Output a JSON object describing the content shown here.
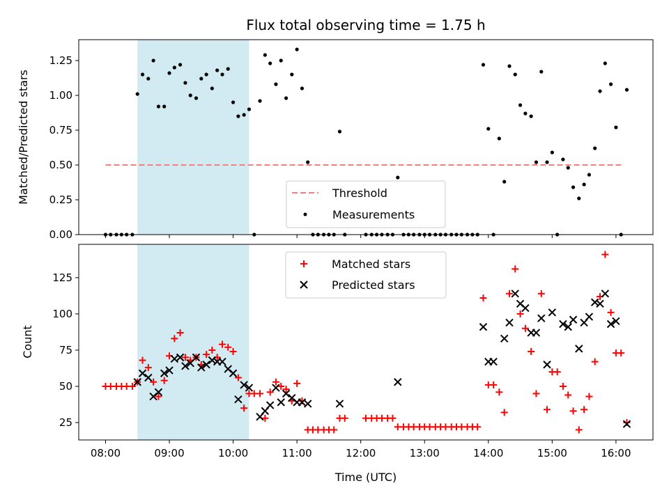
{
  "chart_data": [
    {
      "type": "scatter",
      "title": "Flux total observing time = 1.75 h",
      "xlabel": "",
      "ylabel": "Matched/Predicted stars",
      "xlim": [
        7.58,
        16.58
      ],
      "ylim": [
        0.0,
        1.4
      ],
      "y_ticks": [
        0.0,
        0.25,
        0.5,
        0.75,
        1.0,
        1.25
      ],
      "y_tick_labels": [
        "0.00",
        "0.25",
        "0.50",
        "0.75",
        "1.00",
        "1.25"
      ],
      "shaded_span": {
        "x0": 8.5,
        "x1": 10.25,
        "color": "#add8e6"
      },
      "legend": {
        "position": "lower-center",
        "entries": [
          "Threshold",
          "Measurements"
        ]
      },
      "threshold": {
        "name": "Threshold",
        "y": 0.5,
        "x0": 8.0,
        "x1": 16.08,
        "color": "#f08080"
      },
      "series": [
        {
          "name": "Measurements",
          "marker": "dot",
          "color": "#000000",
          "x": [
            8.0,
            8.08,
            8.17,
            8.25,
            8.33,
            8.42,
            8.5,
            8.58,
            8.67,
            8.75,
            8.83,
            8.92,
            9.0,
            9.08,
            9.17,
            9.25,
            9.33,
            9.42,
            9.5,
            9.58,
            9.67,
            9.75,
            9.83,
            9.92,
            10.0,
            10.08,
            10.17,
            10.25,
            10.33,
            10.42,
            10.5,
            10.58,
            10.67,
            10.75,
            10.83,
            10.92,
            11.0,
            11.08,
            11.17,
            11.25,
            11.33,
            11.42,
            11.5,
            11.58,
            11.67,
            11.75,
            12.08,
            12.17,
            12.25,
            12.33,
            12.42,
            12.5,
            12.58,
            12.67,
            12.75,
            12.83,
            12.92,
            13.0,
            13.08,
            13.17,
            13.25,
            13.33,
            13.42,
            13.5,
            13.58,
            13.67,
            13.75,
            13.83,
            13.92,
            14.0,
            14.08,
            14.17,
            14.25,
            14.33,
            14.42,
            14.5,
            14.58,
            14.67,
            14.75,
            14.83,
            14.92,
            15.0,
            15.08,
            15.17,
            15.25,
            15.33,
            15.42,
            15.5,
            15.58,
            15.67,
            15.75,
            15.83,
            15.92,
            16.0,
            16.08,
            16.17
          ],
          "y": [
            0,
            0,
            0,
            0,
            0,
            0,
            1.01,
            1.15,
            1.12,
            1.25,
            0.92,
            0.92,
            1.16,
            1.2,
            1.22,
            1.09,
            1.0,
            0.98,
            1.12,
            1.15,
            1.05,
            1.18,
            1.15,
            1.19,
            0.95,
            0.85,
            0.86,
            0.9,
            0.0,
            0.96,
            1.29,
            1.23,
            1.08,
            1.25,
            0.98,
            1.15,
            1.33,
            1.05,
            0.52,
            0,
            0,
            0,
            0,
            0,
            0.74,
            0,
            0,
            0,
            0,
            0,
            0,
            0,
            0.41,
            0,
            0,
            0,
            0,
            0,
            0,
            0,
            0,
            0,
            0,
            0,
            0,
            0,
            0,
            0,
            1.22,
            0.76,
            0,
            0.69,
            0.38,
            1.21,
            1.15,
            0.93,
            0.87,
            0.85,
            0.52,
            1.17,
            0.52,
            0.59,
            0,
            0.54,
            0.48,
            0.34,
            0.26,
            0.36,
            0.43,
            0.62,
            1.03,
            1.23,
            1.08,
            0.77,
            0,
            1.04
          ]
        }
      ]
    },
    {
      "type": "scatter",
      "title": "",
      "xlabel": "Time (UTC)",
      "ylabel": "Count",
      "xlim": [
        7.58,
        16.58
      ],
      "ylim": [
        13,
        148
      ],
      "y_ticks": [
        25,
        50,
        75,
        100,
        125
      ],
      "y_tick_labels": [
        "25",
        "50",
        "75",
        "100",
        "125"
      ],
      "x_ticks": [
        8,
        9,
        10,
        11,
        12,
        13,
        14,
        15,
        16
      ],
      "x_tick_labels": [
        "08:00",
        "09:00",
        "10:00",
        "11:00",
        "12:00",
        "13:00",
        "14:00",
        "15:00",
        "16:00"
      ],
      "shaded_span": {
        "x0": 8.5,
        "x1": 10.25,
        "color": "#add8e6"
      },
      "legend": {
        "position": "top-center",
        "entries": [
          "Matched stars",
          "Predicted stars"
        ]
      },
      "series": [
        {
          "name": "Matched stars",
          "marker": "plus",
          "color": "#ff0000",
          "x": [
            8.0,
            8.08,
            8.17,
            8.25,
            8.33,
            8.42,
            8.5,
            8.58,
            8.67,
            8.75,
            8.83,
            8.92,
            9.0,
            9.08,
            9.17,
            9.25,
            9.33,
            9.42,
            9.5,
            9.58,
            9.67,
            9.75,
            9.83,
            9.92,
            10.0,
            10.08,
            10.17,
            10.25,
            10.33,
            10.42,
            10.5,
            10.58,
            10.67,
            10.75,
            10.83,
            10.92,
            11.0,
            11.08,
            11.17,
            11.25,
            11.33,
            11.42,
            11.5,
            11.58,
            11.67,
            11.75,
            12.08,
            12.17,
            12.25,
            12.33,
            12.42,
            12.5,
            12.58,
            12.67,
            12.75,
            12.83,
            12.92,
            13.0,
            13.08,
            13.17,
            13.25,
            13.33,
            13.42,
            13.5,
            13.58,
            13.67,
            13.75,
            13.83,
            13.92,
            14.0,
            14.08,
            14.17,
            14.25,
            14.33,
            14.42,
            14.5,
            14.58,
            14.67,
            14.75,
            14.83,
            14.92,
            15.0,
            15.08,
            15.17,
            15.25,
            15.33,
            15.42,
            15.5,
            15.58,
            15.67,
            15.75,
            15.83,
            15.92,
            16.0,
            16.08,
            16.17
          ],
          "y": [
            50,
            50,
            50,
            50,
            50,
            50,
            53,
            68,
            63,
            53,
            43,
            54,
            71,
            83,
            87,
            70,
            68,
            70,
            65,
            72,
            75,
            70,
            79,
            77,
            74,
            56,
            35,
            45,
            45,
            45,
            28,
            46,
            53,
            50,
            48,
            40,
            52,
            40,
            20,
            20,
            20,
            20,
            20,
            20,
            28,
            28,
            28,
            28,
            28,
            28,
            28,
            28,
            22,
            22,
            22,
            22,
            22,
            22,
            22,
            22,
            22,
            22,
            22,
            22,
            22,
            22,
            22,
            22,
            111,
            51,
            51,
            46,
            32,
            114,
            131,
            100,
            90,
            74,
            45,
            114,
            34,
            60,
            60,
            50,
            44,
            33,
            20,
            34,
            43,
            67,
            112,
            141,
            101,
            73,
            73,
            25
          ]
        },
        {
          "name": "Predicted stars",
          "marker": "x",
          "color": "#000000",
          "x": [
            8.5,
            8.58,
            8.67,
            8.75,
            8.83,
            8.92,
            9.0,
            9.08,
            9.17,
            9.25,
            9.33,
            9.42,
            9.5,
            9.58,
            9.67,
            9.75,
            9.83,
            9.92,
            10.0,
            10.08,
            10.17,
            10.25,
            10.42,
            10.5,
            10.58,
            10.67,
            10.75,
            10.83,
            10.92,
            11.0,
            11.08,
            11.17,
            11.67,
            12.58,
            13.92,
            14.0,
            14.08,
            14.25,
            14.33,
            14.42,
            14.5,
            14.58,
            14.67,
            14.75,
            14.83,
            14.92,
            15.0,
            15.17,
            15.25,
            15.33,
            15.42,
            15.5,
            15.58,
            15.67,
            15.75,
            15.83,
            15.92,
            16.0,
            16.17
          ],
          "y": [
            53,
            59,
            56,
            43,
            46,
            59,
            61,
            69,
            70,
            64,
            66,
            70,
            63,
            65,
            68,
            67,
            67,
            62,
            59,
            41,
            51,
            49,
            29,
            33,
            37,
            49,
            39,
            45,
            42,
            39,
            39,
            38,
            38,
            53,
            91,
            67,
            67,
            83,
            94,
            114,
            107,
            104,
            87,
            87,
            97,
            65,
            101,
            93,
            91,
            96,
            76,
            94,
            98,
            108,
            107,
            114,
            93,
            95,
            24
          ]
        }
      ]
    }
  ]
}
